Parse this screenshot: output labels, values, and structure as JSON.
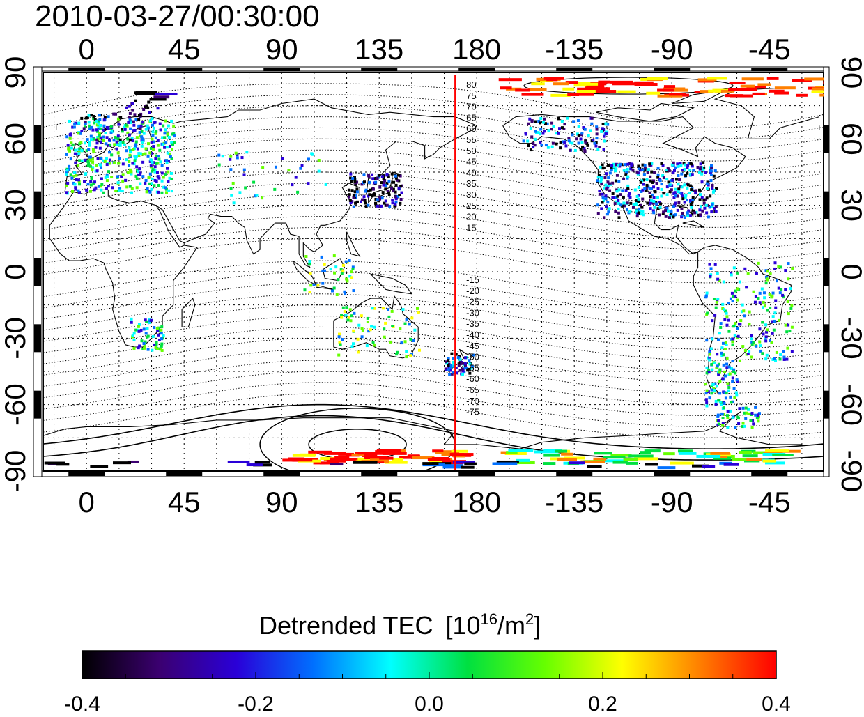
{
  "timestamp": "2010-03-27/00:30:00",
  "map": {
    "lon_ticks_top": [
      "0",
      "45",
      "90",
      "135",
      "180",
      "-135",
      "-90",
      "-45"
    ],
    "lon_ticks_bottom": [
      "0",
      "45",
      "90",
      "135",
      "180",
      "-135",
      "-90",
      "-45"
    ],
    "lat_ticks_left": [
      "90",
      "60",
      "30",
      "0",
      "-30",
      "-60",
      "-90"
    ],
    "lat_ticks_right": [
      "90",
      "60",
      "30",
      "0",
      "-30",
      "-60",
      "-90"
    ],
    "meridian_label_lon": 170,
    "contour_labels_north": [
      "80",
      "75",
      "70",
      "65",
      "60",
      "55",
      "50",
      "45",
      "40",
      "35",
      "30",
      "25",
      "20",
      "15"
    ],
    "contour_labels_south": [
      "-15",
      "-20",
      "-25",
      "-30",
      "-35",
      "-40",
      "-45",
      "-50",
      "-55",
      "-60",
      "-65",
      "-70",
      "-75"
    ],
    "colors": {
      "meridian": "#ff0000",
      "frame": "#000000"
    }
  },
  "colorbar": {
    "title": "Detrended TEC",
    "unit_prefix": "[10",
    "unit_exp1": "16",
    "unit_mid": "/m",
    "unit_exp2": "2",
    "unit_suffix": "]",
    "tick_labels": [
      "-0.4",
      "-0.2",
      "0.0",
      "0.2",
      "0.4"
    ],
    "range": [
      -0.4,
      0.4
    ],
    "stops": [
      "#000000",
      "#3b0070",
      "#2a00d8",
      "#0070ff",
      "#00ffff",
      "#00e040",
      "#66ff00",
      "#ffff00",
      "#ff8000",
      "#ff0000"
    ]
  }
}
